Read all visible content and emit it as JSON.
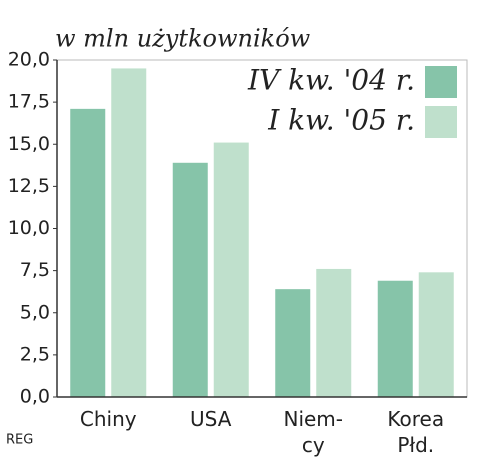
{
  "chart_data": {
    "type": "bar",
    "title": "w mln użytkowników",
    "categories": [
      "Chiny",
      "USA",
      "Niem-\ncy",
      "Korea\nPłd."
    ],
    "series": [
      {
        "name": "IV kw. '04 r.",
        "color": "#86c4a9",
        "values": [
          17.1,
          13.9,
          6.4,
          6.9
        ]
      },
      {
        "name": "I kw. '05 r.",
        "color": "#bfe0cc",
        "values": [
          19.5,
          15.1,
          7.6,
          7.4
        ]
      }
    ],
    "ylim": [
      0,
      20
    ],
    "yticks": [
      {
        "value": 0,
        "label": "0,0"
      },
      {
        "value": 2.5,
        "label": "2,5"
      },
      {
        "value": 5,
        "label": "5,0"
      },
      {
        "value": 7.5,
        "label": "7,5"
      },
      {
        "value": 10,
        "label": "10,0"
      },
      {
        "value": 12.5,
        "label": "12,5"
      },
      {
        "value": 15,
        "label": "15,0"
      },
      {
        "value": 17.5,
        "label": "17,5"
      },
      {
        "value": 20,
        "label": "20,0"
      }
    ],
    "legend": "upper right",
    "source": "REG"
  }
}
